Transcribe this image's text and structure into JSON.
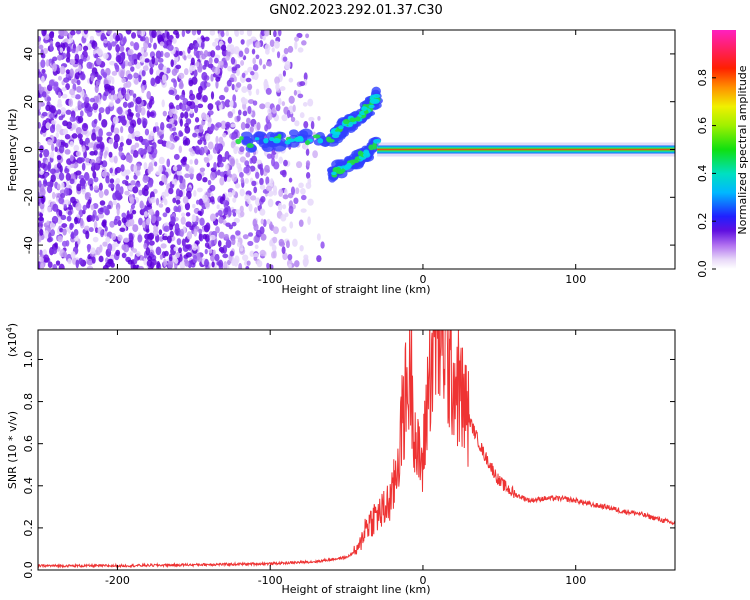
{
  "title": "GN02.2023.292.01.37.C30",
  "colors": {
    "snr_line": "#ee3333",
    "axis": "#000000"
  },
  "colorbar": {
    "label": "Normalized spectral amplitude",
    "ticks": [
      "0.0",
      "0.2",
      "0.4",
      "0.6",
      "0.8"
    ],
    "tick_values": [
      0.0,
      0.2,
      0.4,
      0.6,
      0.8
    ],
    "range": [
      0,
      1
    ],
    "colormap": "gist_ncar-like (white→purple→blue→cyan→green→yellow→red→magenta)"
  },
  "chart_data": [
    {
      "type": "heatmap",
      "xlabel": "Height of straight line (km)",
      "ylabel": "Frequency (Hz)",
      "xlim": [
        -252,
        165
      ],
      "ylim": [
        -50,
        50
      ],
      "x_ticks": [
        -200,
        -100,
        0,
        100
      ],
      "x_tick_labels": [
        "-200",
        "-100",
        "0",
        "100"
      ],
      "y_ticks": [
        -40,
        -20,
        0,
        20,
        40
      ],
      "y_tick_labels": [
        "-40",
        "-20",
        "0",
        "20",
        "40"
      ],
      "features": {
        "noise_region": [
          -252,
          -65
        ],
        "dense_noise_region": [
          -252,
          -128
        ],
        "carrier_line_start": -30,
        "carrier_frequency": 0,
        "upper_branch": {
          "x": [
            -122,
            -60,
            -40,
            -30
          ],
          "y": [
            3,
            5,
            15,
            22
          ]
        },
        "lower_branch": {
          "x": [
            -60,
            -45,
            -30
          ],
          "y": [
            -10,
            -5,
            2
          ]
        }
      }
    },
    {
      "type": "line",
      "xlabel": "Height of straight line (km)",
      "ylabel": "SNR (10 * v/v)",
      "y_exponent_label": "(x10",
      "y_exponent_power": "4",
      "y_exponent_close": ")",
      "xlim": [
        -252,
        165
      ],
      "ylim": [
        0,
        1.14
      ],
      "x_ticks": [
        -200,
        -100,
        0,
        100
      ],
      "x_tick_labels": [
        "-200",
        "-100",
        "0",
        "100"
      ],
      "y_ticks": [
        0.0,
        0.2,
        0.4,
        0.6,
        0.8,
        1.0
      ],
      "y_tick_labels": [
        "0.0",
        "0.2",
        "0.4",
        "0.6",
        "0.8",
        "1.0"
      ],
      "series": [
        {
          "x": [
            -252,
            -200,
            -150,
            -100,
            -70,
            -50,
            -42,
            -38,
            -32,
            -26,
            -20,
            -16,
            -12,
            -8,
            -4,
            0,
            4,
            8,
            12,
            16,
            20,
            24,
            30,
            40,
            50,
            60,
            70,
            80,
            90,
            100,
            110,
            120,
            130,
            140,
            150,
            165
          ],
          "y": [
            0.02,
            0.02,
            0.025,
            0.03,
            0.04,
            0.06,
            0.1,
            0.2,
            0.25,
            0.28,
            0.35,
            0.55,
            0.8,
            0.95,
            0.55,
            0.5,
            0.95,
            1.08,
            1.14,
            0.98,
            0.92,
            0.85,
            0.72,
            0.55,
            0.42,
            0.36,
            0.33,
            0.34,
            0.34,
            0.33,
            0.31,
            0.3,
            0.28,
            0.27,
            0.25,
            0.22
          ]
        }
      ]
    }
  ]
}
